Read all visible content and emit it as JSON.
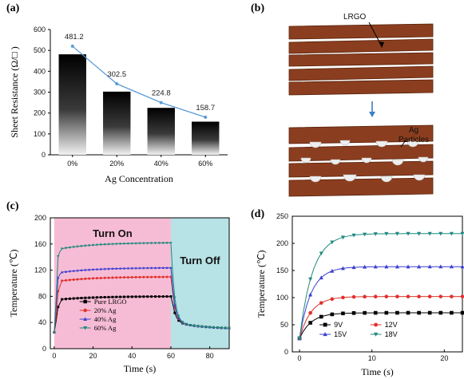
{
  "labels": {
    "a": "(a)",
    "b": "(b)",
    "c": "(c)",
    "d": "(d)"
  },
  "colors": {
    "line_a": "#5b9bd5",
    "turn_on_bg": "#f7bcd5",
    "turn_off_bg": "#b7e2e6",
    "layer": "#8b3e1f",
    "layer_edge": "#5a230c",
    "arrow": "#3d7fc4",
    "black": "#000000",
    "red": "#e0302b",
    "blue": "#3b3fd0",
    "teal": "#1f8a7e"
  },
  "diagram": {
    "top_label": "LRGO",
    "bottom_label_1": "Ag",
    "bottom_label_2": "Particles"
  },
  "chart_data": [
    {
      "type": "bar",
      "panel": "a",
      "categories": [
        "0%",
        "20%",
        "40%",
        "60%"
      ],
      "values": [
        481.2,
        302.5,
        224.8,
        158.7
      ],
      "value_labels": [
        "481.2",
        "302.5",
        "224.8",
        "158.7"
      ],
      "line_values": [
        520,
        340,
        250,
        180
      ],
      "xlabel": "Ag Concentration",
      "ylabel": "Sheet Resistance (Ω/□ )",
      "ylim": [
        0,
        600
      ],
      "yticks": [
        0,
        100,
        200,
        300,
        400,
        500,
        600
      ]
    },
    {
      "type": "line",
      "panel": "c",
      "xlabel": "Time (s)",
      "ylabel": "Temperature (℃)",
      "xlim": [
        -2,
        90
      ],
      "ylim": [
        0,
        200
      ],
      "xticks": [
        0,
        20,
        40,
        60,
        80
      ],
      "yticks": [
        0,
        40,
        80,
        120,
        160,
        200
      ],
      "regions": [
        {
          "label": "Turn On",
          "x0": 0,
          "x1": 60
        },
        {
          "label": "Turn Off",
          "x0": 60,
          "x1": 90
        }
      ],
      "series": [
        {
          "name": "Pure LRGO",
          "marker": "square",
          "color": "#000000",
          "plateau": 80,
          "start": 40
        },
        {
          "name": "20% Ag",
          "marker": "circle",
          "color": "#e0302b",
          "plateau": 110,
          "start": 55
        },
        {
          "name": "40% Ag",
          "marker": "triangle-up",
          "color": "#3b3fd0",
          "plateau": 124,
          "start": 85
        },
        {
          "name": "60% Ag",
          "marker": "triangle-down",
          "color": "#1f8a7e",
          "plateau": 162,
          "start": 110
        }
      ]
    },
    {
      "type": "line",
      "panel": "d",
      "xlabel": "Time (s)",
      "ylabel": "Temperature (℃)",
      "xlim": [
        -1,
        22.5
      ],
      "ylim": [
        0,
        250
      ],
      "xticks": [
        0,
        10,
        20
      ],
      "yticks": [
        0,
        50,
        100,
        150,
        200,
        250
      ],
      "series": [
        {
          "name": "9V",
          "marker": "square",
          "color": "#000000",
          "plateau": 72
        },
        {
          "name": "12V",
          "marker": "circle",
          "color": "#e0302b",
          "plateau": 102
        },
        {
          "name": "15V",
          "marker": "triangle-up",
          "color": "#3b3fd0",
          "plateau": 157
        },
        {
          "name": "18V",
          "marker": "triangle-down",
          "color": "#1f8a7e",
          "plateau": 218
        }
      ]
    }
  ]
}
